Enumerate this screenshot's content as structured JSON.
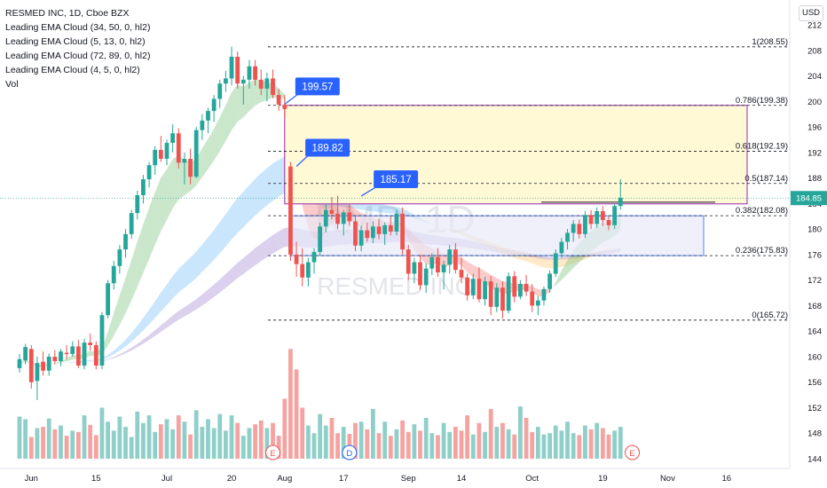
{
  "legend": {
    "title": "RESMED INC, 1D, Cboe BZX",
    "lines": [
      "Leading EMA Cloud (34, 50, 0, hl2)",
      "Leading EMA Cloud (5, 13, 0, hl2)",
      "Leading EMA Cloud (72, 89, 0, hl2)",
      "Leading EMA Cloud (4, 5, 0, hl2)",
      "Vol"
    ]
  },
  "currency": "USD",
  "watermark": {
    "symbol": "RMD, 1D",
    "name": "RESMED INC"
  },
  "colors": {
    "up": "#26a69a",
    "down": "#ef5350",
    "vol_up": "#8fcfc9",
    "vol_down": "#f5a3a1",
    "callout": "#2962ff",
    "fib_zone_fill": "#fff9d6",
    "fib_zone_border": "#9c27b0",
    "range_fill": "#e8eaf8",
    "range_border": "#2962ff",
    "last_price": "#26a69a"
  },
  "chart_data": {
    "type": "candlestick",
    "y_axis": {
      "ticks": [
        144,
        148,
        152,
        156,
        160,
        164,
        168,
        172,
        176,
        180,
        184,
        188,
        192,
        196,
        200,
        204,
        208,
        212
      ]
    },
    "x_axis": {
      "ticks": [
        {
          "label": "Jun",
          "bar": 2
        },
        {
          "label": "15",
          "bar": 13
        },
        {
          "label": "Jul",
          "bar": 25
        },
        {
          "label": "20",
          "bar": 36
        },
        {
          "label": "Aug",
          "bar": 45
        },
        {
          "label": "17",
          "bar": 55
        },
        {
          "label": "Sep",
          "bar": 66
        },
        {
          "label": "14",
          "bar": 75
        },
        {
          "label": "Oct",
          "bar": 87
        },
        {
          "label": "19",
          "bar": 99
        },
        {
          "label": "Nov",
          "bar": 110
        },
        {
          "label": "16",
          "bar": 120
        }
      ]
    },
    "last_price": {
      "value": 184.85,
      "label": "184.85"
    },
    "fib_levels": [
      {
        "ratio_label": "1(208.55)",
        "value": 208.55
      },
      {
        "ratio_label": "0.786(199.38)",
        "value": 199.38
      },
      {
        "ratio_label": "0.618(192.19)",
        "value": 192.19
      },
      {
        "ratio_label": "0.5(187.14)",
        "value": 187.14
      },
      {
        "ratio_label": "0.382(182.08)",
        "value": 182.08
      },
      {
        "ratio_label": "0.236(175.83)",
        "value": 175.83
      },
      {
        "ratio_label": "0(165.72)",
        "value": 165.72
      }
    ],
    "callouts": [
      {
        "label": "199.57",
        "bar": 45,
        "value": 199.57
      },
      {
        "label": "189.82",
        "bar": 47,
        "value": 189.82
      },
      {
        "label": "185.17",
        "bar": 58,
        "value": 185.17
      }
    ],
    "event_markers": [
      {
        "letter": "E",
        "bar": 43
      },
      {
        "letter": "D",
        "bar": 56
      },
      {
        "letter": "E",
        "bar": 104
      }
    ],
    "candles": [
      [
        158.2,
        160.4,
        157.5,
        159.6
      ],
      [
        159.4,
        162.0,
        158.8,
        161.5
      ],
      [
        161.2,
        161.8,
        155.0,
        156.0
      ],
      [
        156.2,
        160.0,
        153.2,
        159.0
      ],
      [
        159.2,
        160.8,
        157.0,
        157.8
      ],
      [
        157.8,
        160.5,
        157.0,
        160.0
      ],
      [
        160.0,
        161.0,
        158.8,
        159.3
      ],
      [
        159.3,
        161.2,
        158.5,
        160.8
      ],
      [
        160.6,
        161.8,
        159.6,
        160.4
      ],
      [
        160.4,
        162.4,
        160.0,
        161.6
      ],
      [
        161.6,
        162.6,
        158.2,
        158.6
      ],
      [
        158.6,
        162.8,
        158.0,
        162.2
      ],
      [
        162.2,
        163.6,
        161.0,
        161.8
      ],
      [
        161.8,
        162.4,
        158.0,
        158.6
      ],
      [
        158.6,
        167.0,
        158.0,
        166.5
      ],
      [
        166.5,
        172.0,
        166.0,
        171.5
      ],
      [
        171.5,
        175.0,
        170.5,
        174.2
      ],
      [
        174.2,
        177.5,
        173.0,
        176.8
      ],
      [
        176.8,
        180.0,
        175.5,
        179.2
      ],
      [
        179.2,
        183.0,
        178.5,
        182.5
      ],
      [
        182.5,
        186.0,
        181.5,
        185.3
      ],
      [
        185.3,
        188.5,
        184.0,
        187.8
      ],
      [
        187.8,
        190.5,
        186.5,
        190.0
      ],
      [
        190.0,
        193.0,
        188.5,
        192.4
      ],
      [
        192.4,
        194.6,
        190.5,
        191.0
      ],
      [
        191.0,
        194.0,
        190.0,
        193.5
      ],
      [
        193.5,
        196.4,
        192.0,
        195.0
      ],
      [
        195.0,
        195.8,
        189.5,
        190.4
      ],
      [
        190.4,
        192.0,
        187.0,
        191.0
      ],
      [
        191.0,
        192.6,
        187.0,
        188.2
      ],
      [
        188.2,
        196.0,
        188.0,
        195.5
      ],
      [
        195.5,
        198.0,
        194.0,
        197.0
      ],
      [
        197.0,
        199.0,
        195.0,
        198.5
      ],
      [
        198.5,
        201.0,
        196.8,
        200.4
      ],
      [
        200.4,
        203.4,
        199.0,
        202.8
      ],
      [
        202.8,
        204.8,
        201.5,
        203.6
      ],
      [
        203.6,
        208.6,
        202.5,
        207.0
      ],
      [
        207.0,
        207.8,
        202.0,
        202.8
      ],
      [
        202.8,
        204.0,
        199.5,
        203.4
      ],
      [
        203.4,
        206.5,
        202.0,
        205.5
      ],
      [
        205.5,
        206.5,
        202.5,
        203.4
      ],
      [
        203.4,
        205.0,
        201.0,
        202.0
      ],
      [
        202.0,
        204.5,
        200.0,
        203.6
      ],
      [
        203.6,
        205.0,
        200.5,
        201.0
      ],
      [
        201.0,
        202.0,
        198.5,
        199.5
      ],
      [
        199.5,
        201.0,
        197.5,
        198.8
      ],
      [
        189.8,
        190.5,
        175.0,
        176.0
      ],
      [
        176.0,
        178.0,
        172.5,
        174.5
      ],
      [
        174.5,
        177.0,
        171.0,
        172.4
      ],
      [
        172.4,
        175.5,
        171.0,
        174.8
      ],
      [
        174.8,
        177.0,
        173.0,
        176.4
      ],
      [
        176.4,
        181.0,
        175.8,
        180.4
      ],
      [
        180.4,
        184.0,
        179.5,
        183.0
      ],
      [
        183.0,
        185.0,
        181.5,
        182.4
      ],
      [
        182.4,
        185.2,
        180.0,
        180.8
      ],
      [
        180.8,
        183.0,
        179.0,
        182.6
      ],
      [
        182.6,
        184.0,
        180.5,
        181.2
      ],
      [
        181.2,
        182.0,
        176.5,
        177.4
      ],
      [
        177.4,
        180.5,
        176.5,
        179.8
      ],
      [
        179.8,
        181.0,
        178.0,
        178.6
      ],
      [
        178.6,
        181.2,
        177.8,
        180.4
      ],
      [
        180.4,
        181.6,
        178.4,
        179.2
      ],
      [
        179.2,
        181.0,
        177.5,
        180.6
      ],
      [
        180.6,
        182.0,
        179.0,
        179.6
      ],
      [
        179.6,
        183.0,
        179.0,
        182.4
      ],
      [
        182.4,
        183.4,
        176.0,
        176.8
      ],
      [
        176.8,
        177.5,
        172.0,
        173.0
      ],
      [
        173.0,
        175.5,
        171.5,
        174.8
      ],
      [
        174.8,
        176.0,
        170.5,
        171.2
      ],
      [
        171.2,
        174.6,
        170.0,
        173.8
      ],
      [
        173.8,
        176.2,
        172.8,
        175.6
      ],
      [
        175.6,
        177.0,
        172.5,
        173.2
      ],
      [
        173.2,
        175.0,
        170.5,
        174.4
      ],
      [
        174.4,
        177.5,
        173.0,
        176.8
      ],
      [
        176.8,
        177.8,
        173.0,
        173.6
      ],
      [
        173.6,
        175.5,
        171.5,
        172.4
      ],
      [
        172.4,
        173.0,
        168.8,
        169.6
      ],
      [
        169.6,
        173.0,
        169.0,
        172.2
      ],
      [
        172.2,
        174.0,
        168.5,
        169.0
      ],
      [
        169.0,
        172.5,
        168.0,
        171.8
      ],
      [
        171.8,
        172.6,
        166.5,
        167.8
      ],
      [
        167.8,
        171.5,
        167.0,
        170.8
      ],
      [
        170.8,
        171.8,
        166.0,
        167.2
      ],
      [
        167.2,
        173.2,
        166.8,
        172.6
      ],
      [
        172.6,
        173.4,
        168.5,
        169.4
      ],
      [
        169.4,
        172.0,
        169.0,
        171.4
      ],
      [
        171.4,
        172.8,
        169.5,
        170.2
      ],
      [
        170.2,
        171.4,
        167.0,
        168.0
      ],
      [
        168.0,
        169.5,
        166.5,
        168.8
      ],
      [
        168.8,
        171.0,
        168.0,
        170.6
      ],
      [
        170.6,
        173.5,
        170.0,
        173.0
      ],
      [
        173.0,
        176.8,
        172.5,
        176.2
      ],
      [
        176.2,
        178.6,
        175.5,
        178.0
      ],
      [
        178.0,
        180.0,
        176.8,
        179.4
      ],
      [
        179.4,
        181.4,
        178.0,
        180.8
      ],
      [
        180.8,
        181.5,
        178.5,
        179.2
      ],
      [
        179.2,
        182.8,
        178.6,
        182.2
      ],
      [
        182.2,
        183.0,
        180.0,
        180.8
      ],
      [
        180.8,
        183.4,
        180.2,
        182.8
      ],
      [
        182.8,
        183.6,
        180.5,
        181.4
      ],
      [
        181.4,
        182.0,
        179.8,
        180.6
      ],
      [
        180.6,
        184.0,
        180.0,
        183.6
      ],
      [
        183.6,
        187.8,
        183.0,
        184.9
      ]
    ],
    "volume": [
      150.6,
      150.2,
      147.4,
      148.8,
      149.0,
      150.3,
      148.6,
      149.2,
      147.6,
      148.4,
      148.2,
      150.8,
      149.3,
      147.7,
      152.0,
      149.8,
      148.4,
      150.6,
      149.0,
      147.4,
      151.4,
      149.6,
      150.8,
      148.2,
      149.4,
      150.2,
      148.6,
      150.8,
      149.8,
      147.8,
      151.6,
      149.0,
      150.2,
      148.8,
      151.0,
      148.4,
      150.8,
      149.6,
      147.6,
      148.8,
      149.4,
      150.0,
      148.8,
      149.6,
      147.6,
      153.4,
      161.2,
      158.0,
      152.0,
      149.2,
      148.0,
      151.0,
      149.2,
      150.4,
      148.0,
      149.0,
      147.9,
      149.6,
      149.8,
      148.6,
      151.8,
      148.0,
      149.8,
      147.6,
      148.6,
      150.0,
      148.2,
      149.4,
      148.4,
      150.4,
      148.0,
      147.7,
      149.6,
      148.2,
      149.0,
      148.4,
      150.8,
      147.8,
      149.6,
      148.2,
      151.8,
      149.0,
      149.6,
      148.6,
      147.8,
      152.2,
      150.4,
      148.2,
      149.0,
      147.8,
      148.0,
      149.2,
      148.4,
      149.8,
      148.0,
      147.7,
      149.2,
      148.6,
      149.6,
      148.8,
      147.8,
      148.4,
      149.0
    ]
  }
}
